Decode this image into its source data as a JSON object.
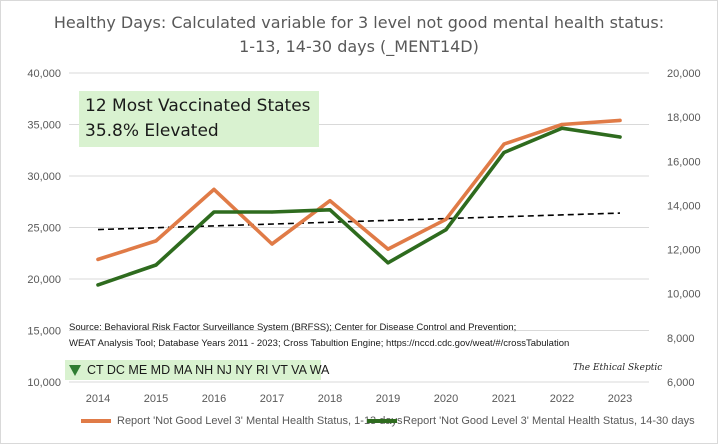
{
  "title": {
    "line1": "Healthy Days: Calculated variable for 3 level not good mental health status:",
    "line2": "1-13, 14-30 days (_MENT14D)"
  },
  "callout": {
    "line1": "12 Most Vaccinated States",
    "line2": "35.8% Elevated"
  },
  "source": {
    "line1": "Source: Behavioral Risk Factor Surveillance System (BRFSS); Center for Disease Control and Prevention;",
    "line2": "WEAT Analysis Tool; Database Years 2011 - 2023; Cross Tabultion Engine; https://nccd.cdc.gov/weat/#/crossTabulation"
  },
  "states_label": "CT DC ME MD MA NH NJ NY RI VT VA WA",
  "signature": "The Ethical Skeptic",
  "colors": {
    "series1": "#e07b47",
    "series2": "#2e6b1e",
    "trendline": "#000000",
    "gridline": "#d9d9d9",
    "callout_bg": "#d9f2d0"
  },
  "chart_data": {
    "type": "line",
    "categories": [
      "2014",
      "2015",
      "2016",
      "2017",
      "2018",
      "2019",
      "2020",
      "2021",
      "2022",
      "2023"
    ],
    "series": [
      {
        "name": "Report 'Not Good Level 3' Mental Health Status, 1-13 days",
        "axis": "left",
        "values": [
          21900,
          23700,
          28700,
          23400,
          27600,
          22900,
          25800,
          33100,
          35000,
          35400
        ]
      },
      {
        "name": "Report 'Not Good Level 3' Mental Health Status, 14-30 days",
        "axis": "right",
        "values": [
          10400,
          11300,
          13700,
          13700,
          13800,
          11400,
          12900,
          16400,
          17500,
          17100
        ]
      }
    ],
    "trendline": {
      "of_series": "Report 'Not Good Level 3' Mental Health Status, 1-13 days",
      "style": "dashed",
      "start": 24800,
      "end": 26400
    },
    "y_left": {
      "ylim": [
        10000,
        40000
      ],
      "ticks": [
        10000,
        15000,
        20000,
        25000,
        30000,
        35000,
        40000
      ],
      "tick_labels": [
        "10,000",
        "15,000",
        "20,000",
        "25,000",
        "30,000",
        "35,000",
        "40,000"
      ]
    },
    "y_right": {
      "ylim": [
        6000,
        20000
      ],
      "ticks": [
        6000,
        8000,
        10000,
        12000,
        14000,
        16000,
        18000,
        20000
      ],
      "tick_labels": [
        "6,000",
        "8,000",
        "10,000",
        "12,000",
        "14,000",
        "16,000",
        "18,000",
        "20,000"
      ]
    },
    "grid": true,
    "legend": "bottom"
  }
}
